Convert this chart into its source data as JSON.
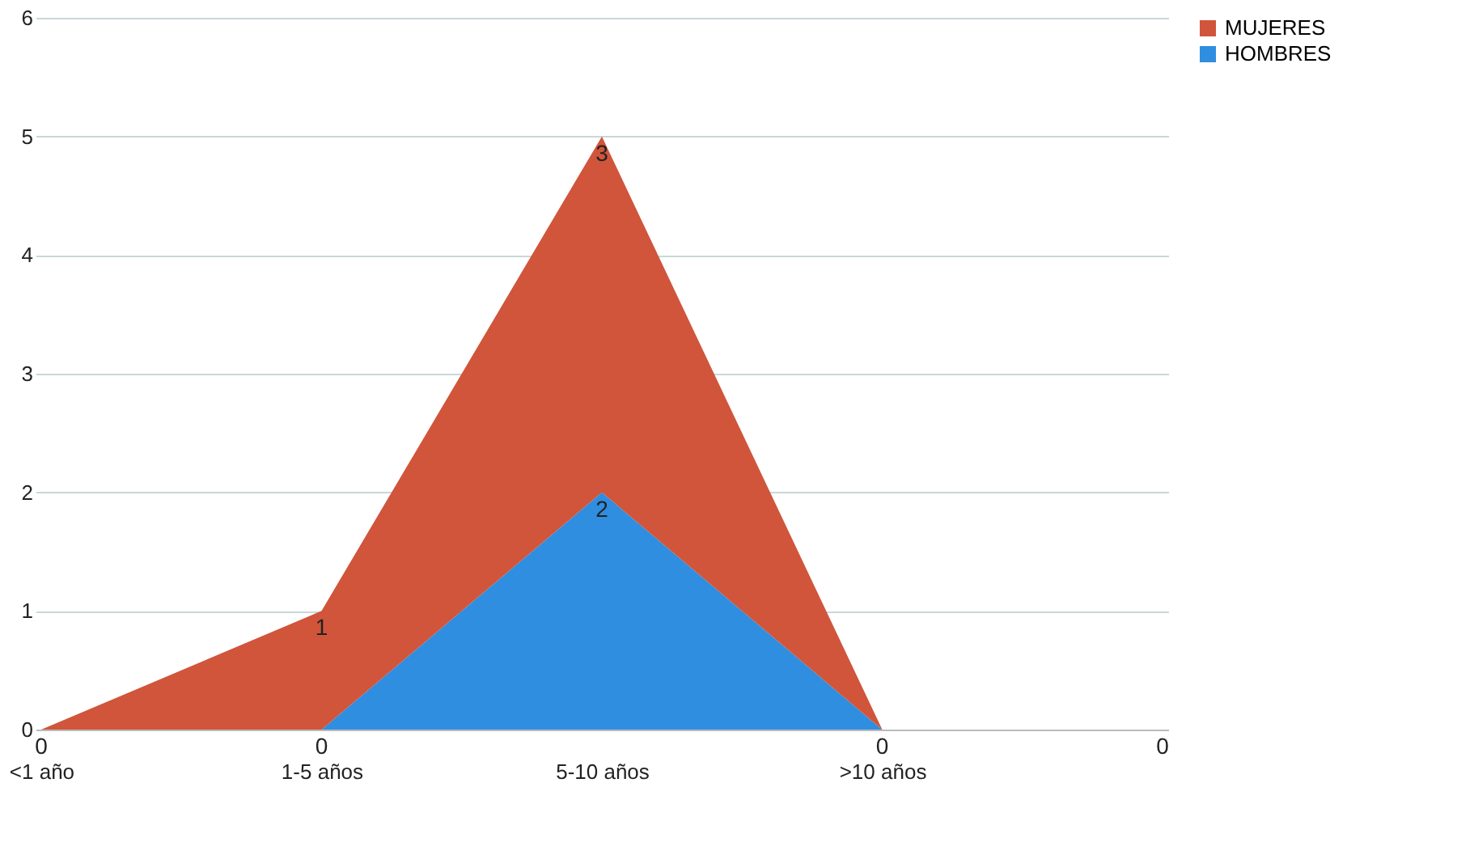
{
  "chart_data": {
    "type": "area",
    "stacked": true,
    "categories": [
      "<1 año",
      "1-5 años",
      "5-10 años",
      ">10 años",
      null
    ],
    "series": [
      {
        "name": "HOMBRES",
        "color": "#2f8ee0",
        "values": [
          0,
          0,
          2,
          0,
          null
        ],
        "value_labels": [
          null,
          "0",
          "2",
          "0",
          null
        ]
      },
      {
        "name": "MUJERES",
        "color": "#d0553b",
        "values": [
          0,
          1,
          3,
          0,
          0
        ],
        "value_labels": [
          "0",
          "1",
          "3",
          null,
          "0"
        ]
      }
    ],
    "ylim": [
      0,
      6
    ],
    "yticks": [
      0,
      1,
      2,
      3,
      4,
      5,
      6
    ],
    "grid": "y",
    "legend": "right"
  }
}
